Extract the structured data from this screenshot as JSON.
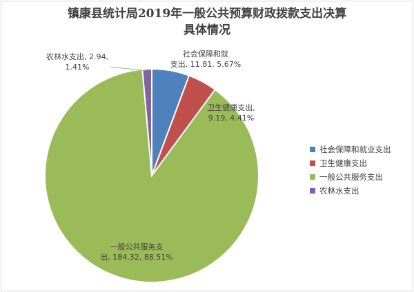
{
  "chart_data": {
    "type": "pie",
    "title_line1": "镇康县统计局2019年一般公共预算财政拨款支出决算",
    "title_line2": "具体情况",
    "series": [
      {
        "name": "社会保障和就业支出",
        "value": 11.81,
        "percent": "5.67%",
        "color": "#4F81BD",
        "label_lines": [
          "社会保障和就",
          "支出, 11.81, 5.67%"
        ]
      },
      {
        "name": "卫生健康支出",
        "value": 9.19,
        "percent": "4.41%",
        "color": "#C0504D",
        "label_lines": [
          "卫生健康支出,",
          "9.19, 4.41%"
        ]
      },
      {
        "name": "一般公共服务支出",
        "value": 184.32,
        "percent": "88.51%",
        "color": "#9BBB59",
        "label_lines": [
          "一般公共服务支",
          "出, 184.32, 88.51%"
        ]
      },
      {
        "name": "农林水支出",
        "value": 2.94,
        "percent": "1.41%",
        "color": "#8064A2",
        "label_lines": [
          "农林水支出, 2.94,",
          "1.41%"
        ]
      }
    ],
    "legend_position": "right"
  }
}
